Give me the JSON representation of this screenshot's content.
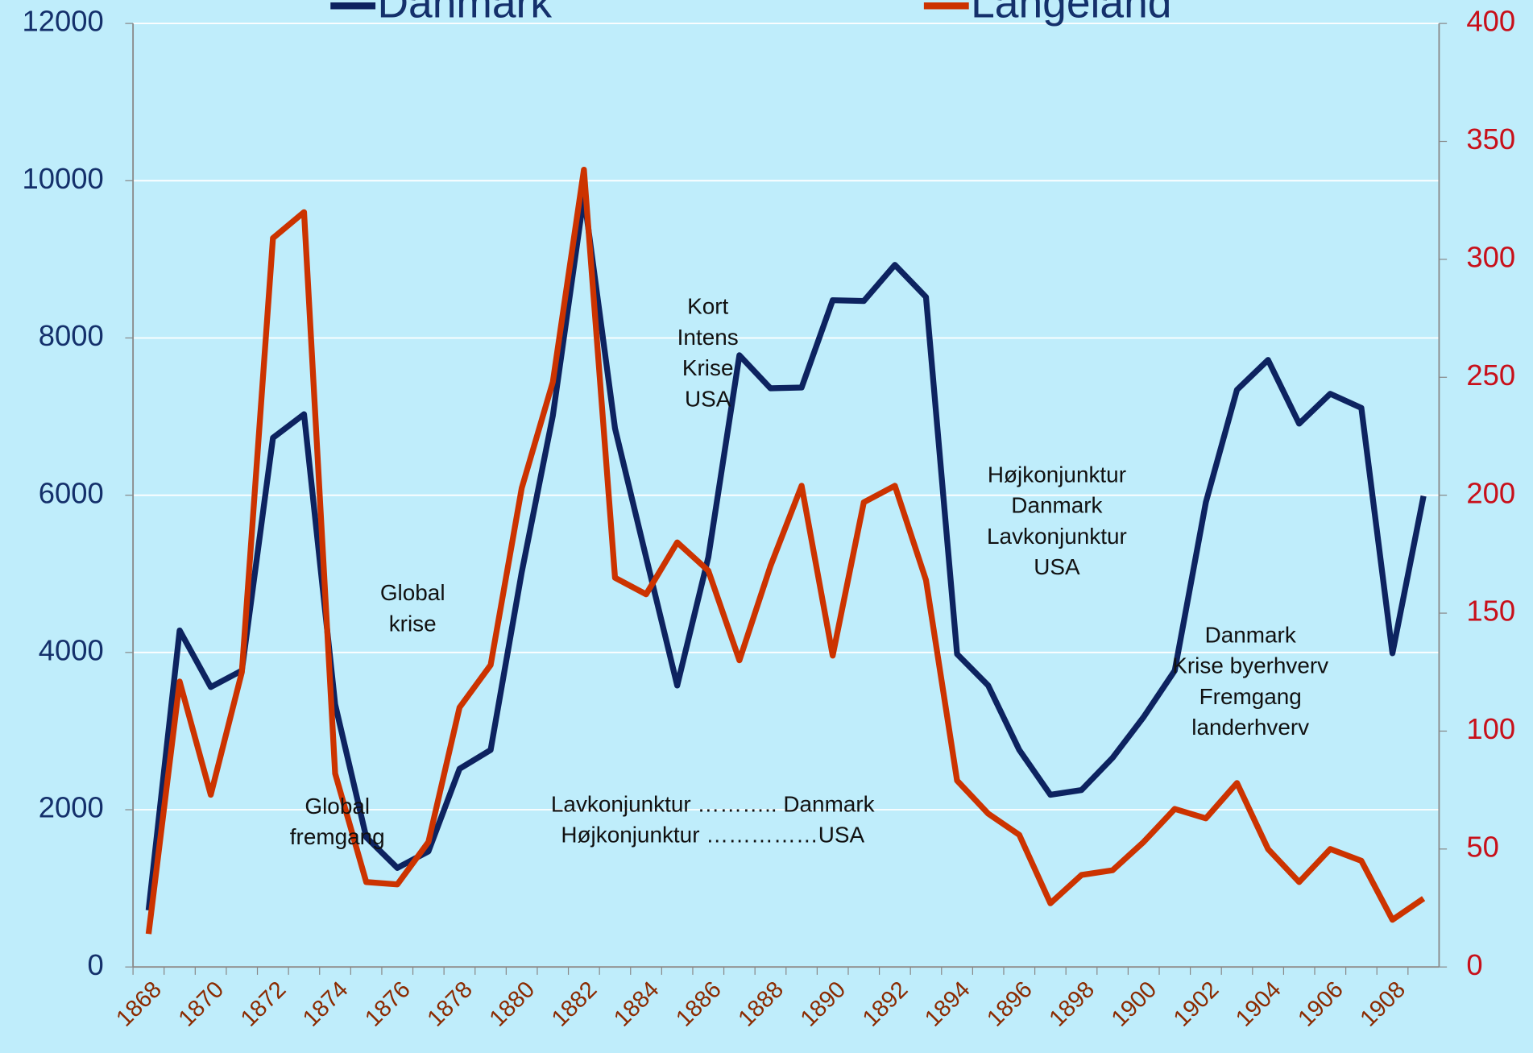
{
  "chart_data": {
    "type": "line",
    "x": [
      1868,
      1869,
      1870,
      1871,
      1872,
      1873,
      1874,
      1875,
      1876,
      1877,
      1878,
      1879,
      1880,
      1881,
      1882,
      1883,
      1884,
      1885,
      1886,
      1887,
      1888,
      1889,
      1890,
      1891,
      1892,
      1893,
      1894,
      1895,
      1896,
      1897,
      1898,
      1899,
      1900,
      1901,
      1902,
      1903,
      1904,
      1905,
      1906,
      1907,
      1908,
      1909
    ],
    "xlim": [
      1867.5,
      1909.5
    ],
    "xticks": [
      1868,
      1870,
      1872,
      1874,
      1876,
      1878,
      1880,
      1882,
      1884,
      1886,
      1888,
      1890,
      1892,
      1894,
      1896,
      1898,
      1900,
      1902,
      1904,
      1906,
      1908
    ],
    "ylim": [
      0,
      12000
    ],
    "yticks": [
      0,
      2000,
      4000,
      6000,
      8000,
      10000,
      12000
    ],
    "y2lim": [
      0,
      400
    ],
    "y2ticks": [
      0,
      50,
      100,
      150,
      200,
      250,
      300,
      350,
      400
    ],
    "grid": true,
    "series": [
      {
        "name": "Danmark",
        "color": "#0d2360",
        "values": [
          720,
          4280,
          3560,
          3770,
          6730,
          7030,
          3340,
          1650,
          1260,
          1470,
          2520,
          2760,
          5020,
          7010,
          9810,
          6850,
          5210,
          3580,
          5210,
          7780,
          7360,
          7370,
          8480,
          8470,
          8930,
          8520,
          3980,
          3580,
          2760,
          2190,
          2250,
          2660,
          3180,
          3770,
          5910,
          7340,
          7720,
          6910,
          7290,
          7110,
          3990,
          5990
        ]
      },
      {
        "name": "Langeland",
        "color": "#cc3300",
        "axis": "y2",
        "values": [
          14,
          121,
          73,
          125,
          309,
          320,
          82,
          36,
          35,
          53,
          110,
          128,
          203,
          248,
          338,
          165,
          158,
          180,
          168,
          130,
          170,
          204,
          132,
          197,
          204,
          164,
          79,
          65,
          56,
          27,
          39,
          41,
          53,
          67,
          63,
          78,
          50,
          36,
          50,
          45,
          20,
          29
        ]
      }
    ],
    "annotations": [
      [
        "Kort",
        "Intens",
        "Krise",
        "USA"
      ],
      [
        "Global",
        "krise"
      ],
      [
        "Global",
        "fremgang"
      ],
      [
        "Lavkonjunktur ……….. Danmark",
        "Højkonjunktur ……………USA"
      ],
      [
        "Højkonjunktur",
        "Danmark",
        "Lavkonjunktur",
        "USA"
      ],
      [
        "Danmark",
        "Krise byerhverv",
        "Fremgang",
        "landerhverv"
      ]
    ]
  }
}
